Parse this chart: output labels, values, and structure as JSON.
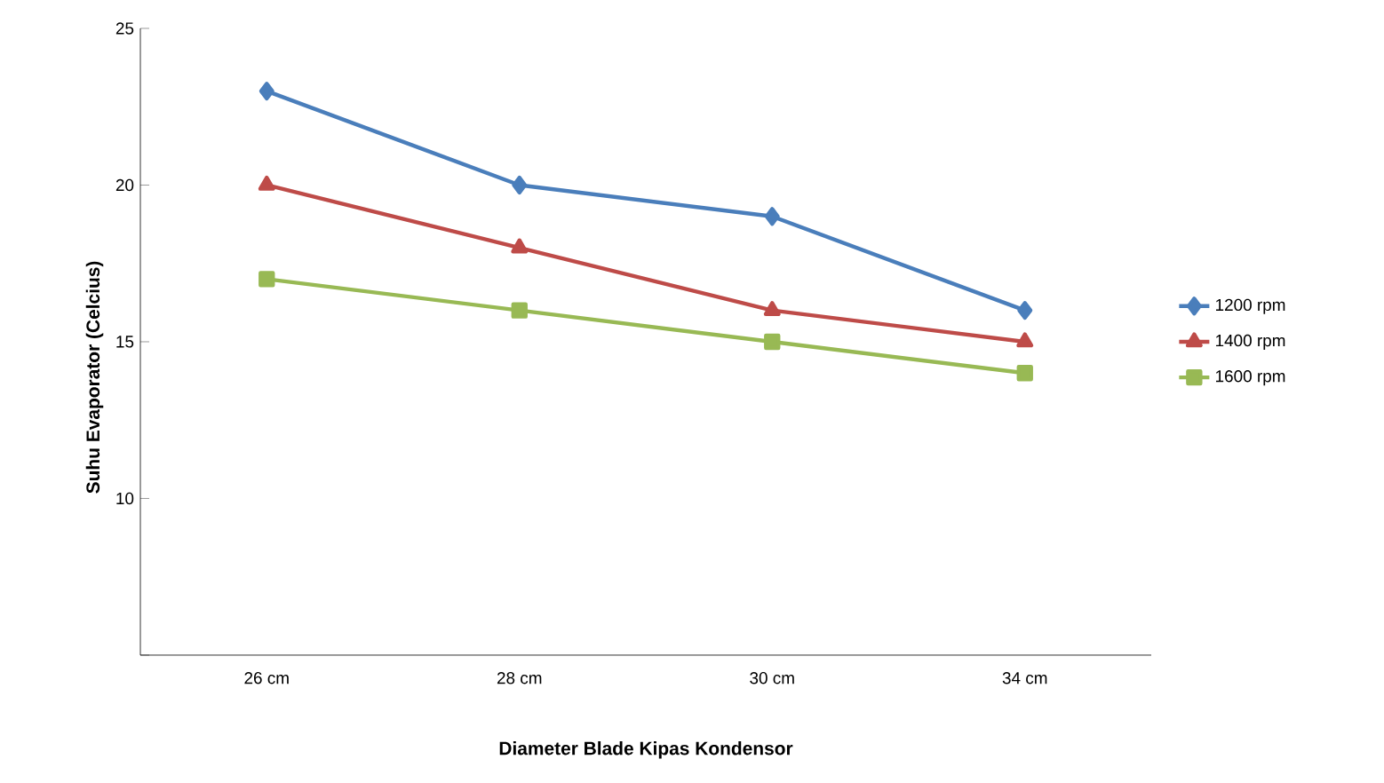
{
  "chart_data": {
    "type": "line",
    "xlabel": "Diameter Blade Kipas Kondensor",
    "ylabel": "Suhu Evaporator (Celcius)",
    "categories": [
      "26 cm",
      "28 cm",
      "30 cm",
      "34 cm"
    ],
    "series": [
      {
        "name": "1200 rpm",
        "color": "#4a7ebb",
        "marker": "diamond",
        "values": [
          23,
          20,
          19,
          16
        ]
      },
      {
        "name": "1400 rpm",
        "color": "#be4b48",
        "marker": "triangle",
        "values": [
          20,
          18,
          16,
          15
        ]
      },
      {
        "name": "1600 rpm",
        "color": "#98b954",
        "marker": "square",
        "values": [
          17,
          16,
          15,
          14
        ]
      }
    ],
    "ylim": [
      5,
      25
    ],
    "yticks": [
      {
        "value": 5,
        "label": null
      },
      10,
      15,
      20,
      25
    ],
    "legend": "right",
    "grid": false
  }
}
